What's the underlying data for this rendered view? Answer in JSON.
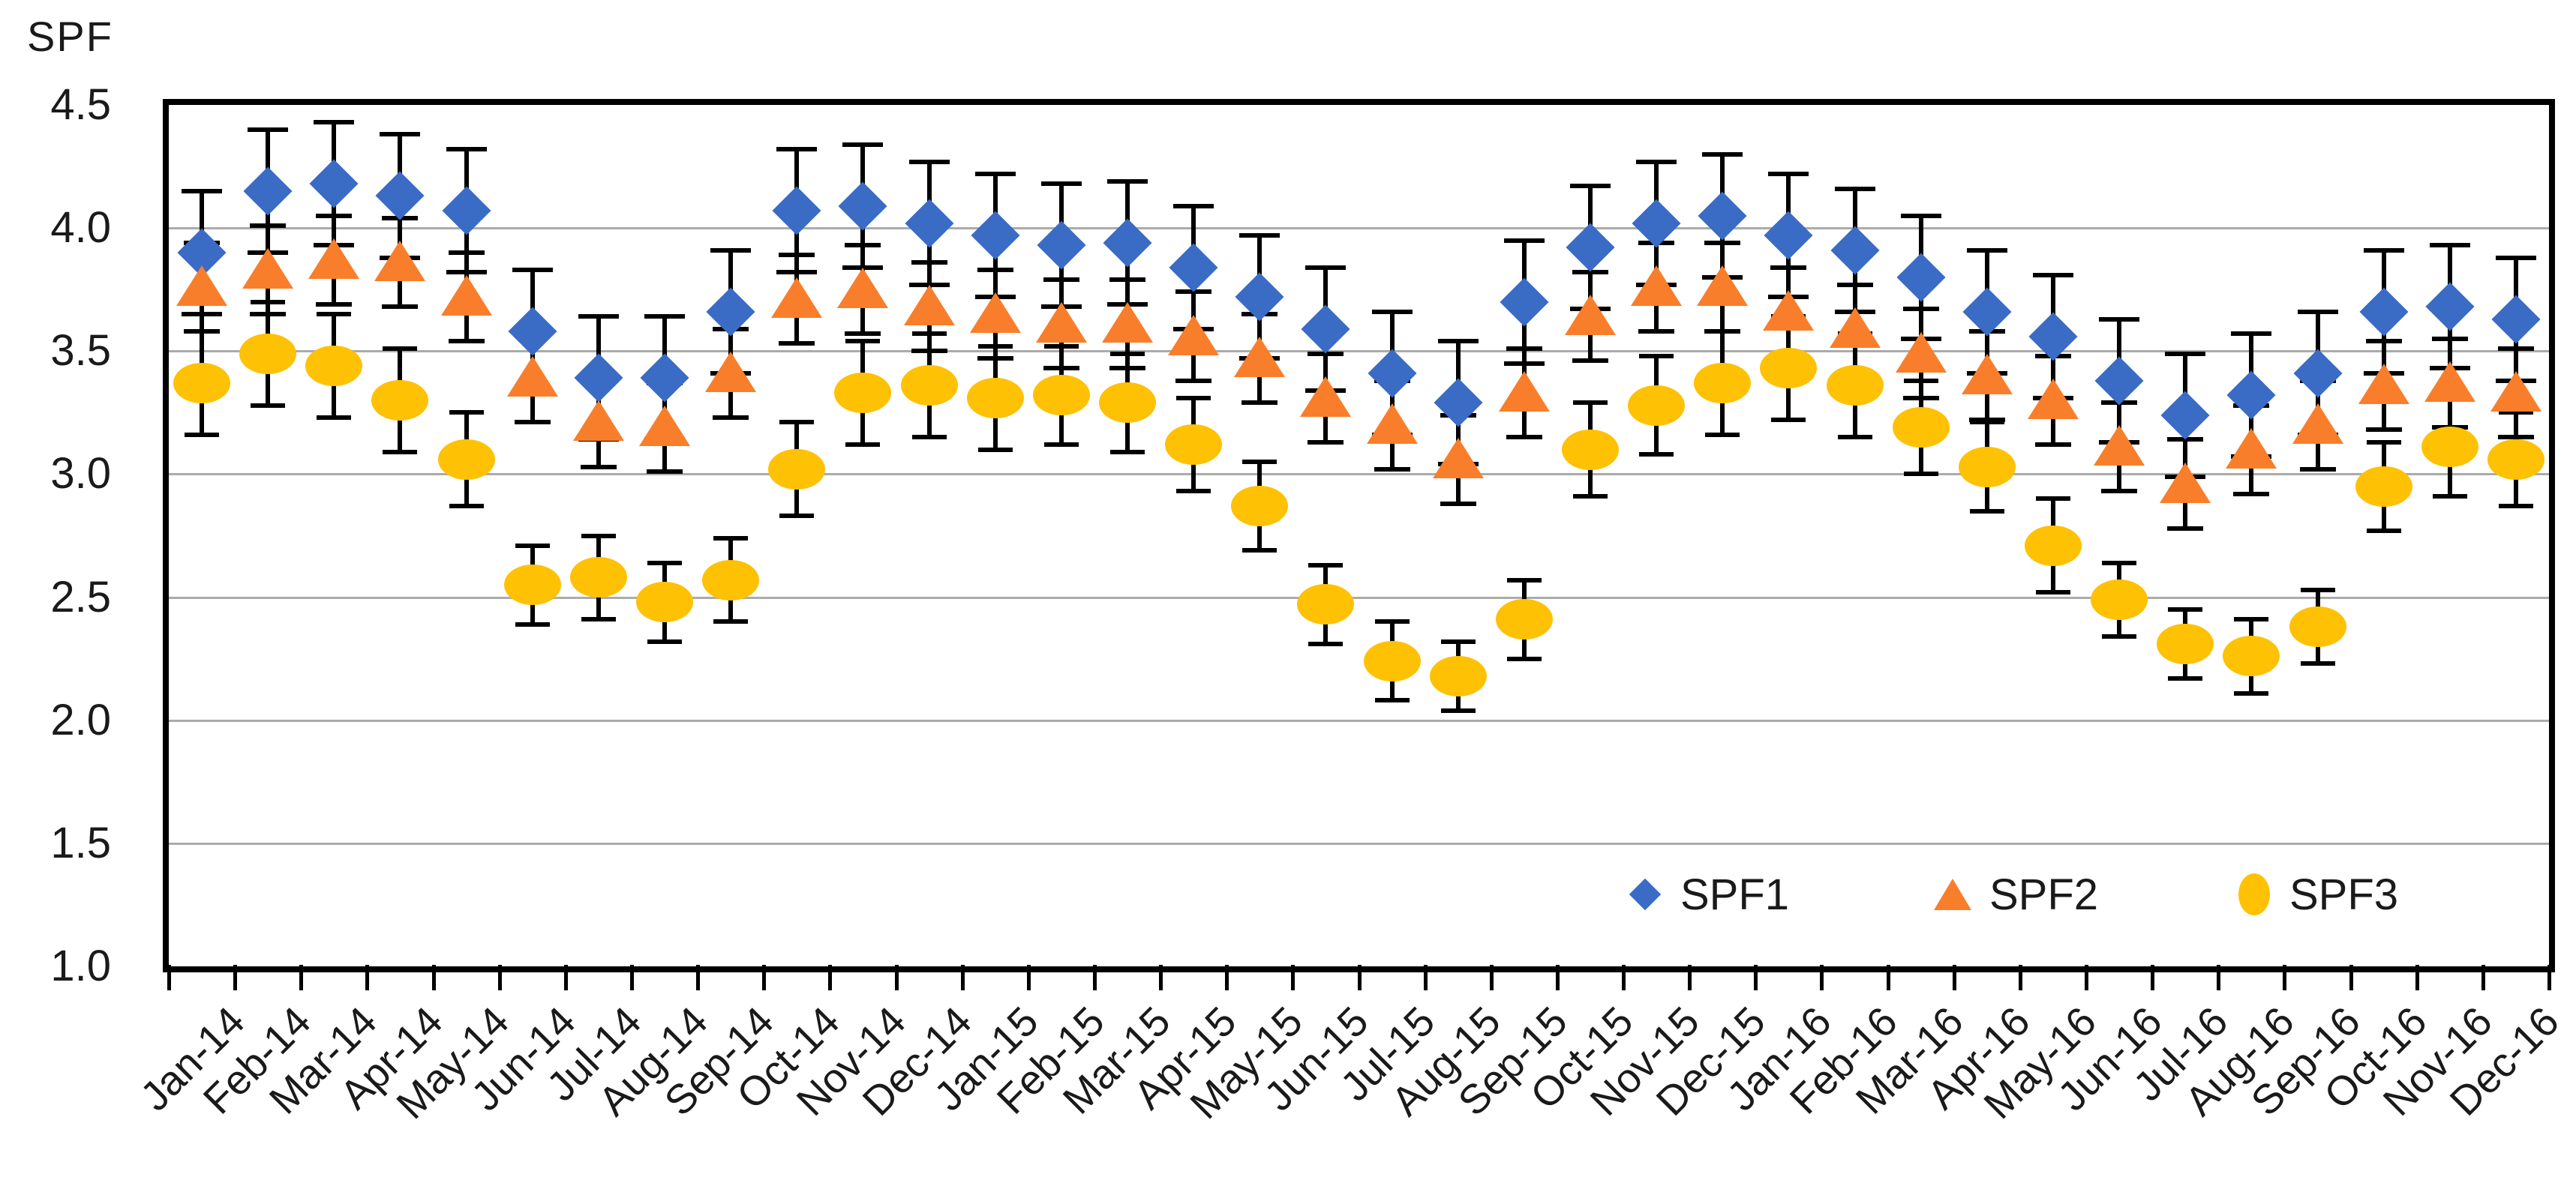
{
  "title": "SPF",
  "y_axis": {
    "tick_labels": [
      "4.5",
      "4.0",
      "3.5",
      "3.0",
      "2.5",
      "2.0",
      "1.5",
      "1.0"
    ],
    "min": 1.0,
    "max": 4.5,
    "step": 0.5
  },
  "legend": {
    "items": [
      {
        "label": "SPF1",
        "marker": "diamond"
      },
      {
        "label": "SPF2",
        "marker": "triangle"
      },
      {
        "label": "SPF3",
        "marker": "circle"
      }
    ]
  },
  "colors": {
    "spf1": "#3a6bc5",
    "spf2": "#f97e2b",
    "spf3": "#ffc103",
    "grid": "#ababab",
    "axis": "#000000",
    "text": "#1a1a1a"
  },
  "chart_data": {
    "type": "scatter",
    "title": "SPF",
    "ylabel": "SPF",
    "xlabel": "",
    "ylim": [
      1.0,
      4.5
    ],
    "grid": "horizontal-gray",
    "legend_position": "inside-bottom-right",
    "x": [
      "Jan-14",
      "Feb-14",
      "Mar-14",
      "Apr-14",
      "May-14",
      "Jun-14",
      "Jul-14",
      "Aug-14",
      "Sep-14",
      "Oct-14",
      "Nov-14",
      "Dec-14",
      "Jan-15",
      "Feb-15",
      "Mar-15",
      "Apr-15",
      "May-15",
      "Jun-15",
      "Jul-15",
      "Aug-15",
      "Sep-15",
      "Oct-15",
      "Nov-15",
      "Dec-15",
      "Jan-16",
      "Feb-16",
      "Mar-16",
      "Apr-16",
      "May-16",
      "Jun-16",
      "Jul-16",
      "Aug-16",
      "Sep-16",
      "Oct-16",
      "Nov-16",
      "Dec-16"
    ],
    "series": [
      {
        "name": "SPF1",
        "marker": "diamond",
        "color": "#3a6bc5",
        "values": [
          3.9,
          4.15,
          4.18,
          4.13,
          4.07,
          3.58,
          3.39,
          3.39,
          3.66,
          4.07,
          4.09,
          4.02,
          3.97,
          3.93,
          3.94,
          3.84,
          3.72,
          3.59,
          3.41,
          3.29,
          3.7,
          3.92,
          4.02,
          4.05,
          3.97,
          3.91,
          3.8,
          3.66,
          3.56,
          3.38,
          3.24,
          3.32,
          3.41,
          3.66,
          3.68,
          3.63
        ],
        "error": 0.25
      },
      {
        "name": "SPF2",
        "marker": "triangle",
        "color": "#f97e2b",
        "values": [
          3.76,
          3.83,
          3.87,
          3.86,
          3.72,
          3.39,
          3.21,
          3.19,
          3.41,
          3.71,
          3.75,
          3.68,
          3.65,
          3.61,
          3.61,
          3.56,
          3.47,
          3.31,
          3.2,
          3.06,
          3.33,
          3.64,
          3.76,
          3.76,
          3.66,
          3.59,
          3.49,
          3.4,
          3.3,
          3.11,
          2.96,
          3.1,
          3.2,
          3.36,
          3.37,
          3.33
        ],
        "error": 0.18
      },
      {
        "name": "SPF3",
        "marker": "circle",
        "color": "#ffc103",
        "values": [
          3.37,
          3.49,
          3.44,
          3.3,
          3.06,
          2.55,
          2.58,
          2.48,
          2.57,
          3.02,
          3.33,
          3.36,
          3.31,
          3.32,
          3.29,
          3.12,
          2.87,
          2.47,
          2.24,
          2.18,
          2.41,
          3.1,
          3.28,
          3.37,
          3.43,
          3.36,
          3.19,
          3.03,
          2.71,
          2.49,
          2.31,
          2.26,
          2.38,
          2.95,
          3.11,
          3.06
        ],
        "error": [
          0.21,
          0.21,
          0.21,
          0.21,
          0.19,
          0.16,
          0.17,
          0.16,
          0.17,
          0.19,
          0.21,
          0.21,
          0.21,
          0.2,
          0.2,
          0.19,
          0.18,
          0.16,
          0.16,
          0.14,
          0.16,
          0.19,
          0.2,
          0.21,
          0.21,
          0.21,
          0.19,
          0.18,
          0.19,
          0.15,
          0.14,
          0.15,
          0.15,
          0.18,
          0.2,
          0.19
        ]
      }
    ]
  }
}
